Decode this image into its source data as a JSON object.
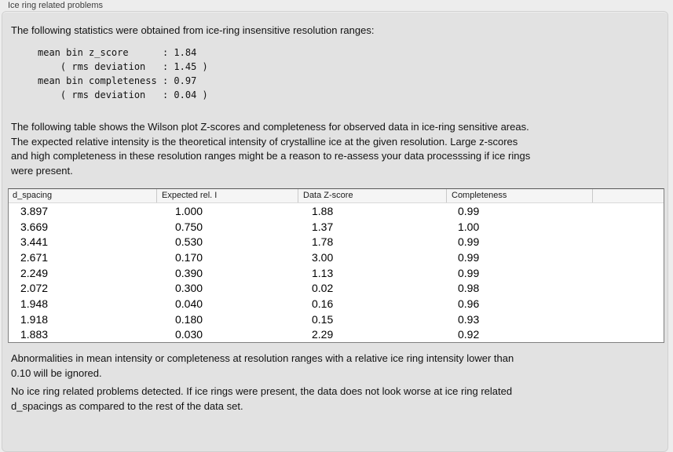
{
  "panel": {
    "title": "Ice ring related problems",
    "intro": "The following statistics were obtained from ice-ring insensitive resolution ranges:",
    "stats_block": "mean bin z_score      : 1.84\n    ( rms deviation   : 1.45 )\nmean bin completeness : 0.97\n    ( rms deviation   : 0.04 )",
    "description": "The following table shows the Wilson plot Z-scores and completeness for observed data in ice-ring sensitive areas.\nThe expected relative intensity is the theoretical intensity of crystalline ice at the given resolution. Large z-scores\nand high completeness in these resolution ranges might be a reason to re-assess your data processsing if ice rings\nwere present.",
    "note_ignore": "Abnormalities in mean intensity or completeness at resolution ranges with a relative ice ring intensity lower than\n0.10 will be ignored.",
    "conclusion": "No ice ring related problems detected. If ice rings were present, the data does not look worse at ice ring related\nd_spacings as compared to the rest of the data set."
  },
  "table": {
    "columns": [
      "d_spacing",
      "Expected rel. I",
      "Data Z-score",
      "Completeness",
      ""
    ],
    "rows": [
      [
        "3.897",
        "1.000",
        "1.88",
        "0.99"
      ],
      [
        "3.669",
        "0.750",
        "1.37",
        "1.00"
      ],
      [
        "3.441",
        "0.530",
        "1.78",
        "0.99"
      ],
      [
        "2.671",
        "0.170",
        "3.00",
        "0.99"
      ],
      [
        "2.249",
        "0.390",
        "1.13",
        "0.99"
      ],
      [
        "2.072",
        "0.300",
        "0.02",
        "0.98"
      ],
      [
        "1.948",
        "0.040",
        "0.16",
        "0.96"
      ],
      [
        "1.918",
        "0.180",
        "0.15",
        "0.93"
      ],
      [
        "1.883",
        "0.030",
        "2.29",
        "0.92"
      ]
    ]
  }
}
